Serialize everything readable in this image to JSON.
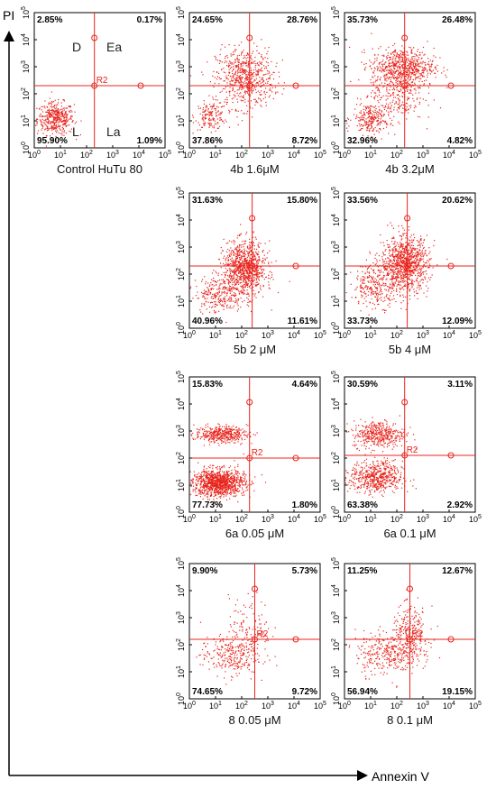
{
  "axes": {
    "x_label": "Annexin V",
    "y_label": "PI"
  },
  "chart_data": [
    {
      "type": "scatter",
      "title": "Control HuTu 80",
      "gate": "R2",
      "quadrant_labels": [
        "D",
        "Ea",
        "L",
        "La"
      ],
      "quadrants": {
        "ul": "2.85%",
        "ur": "0.17%",
        "ll": "95.90%",
        "lr": "1.09%"
      },
      "x_ticks": [
        "10^0",
        "10^1",
        "10^2",
        "10^3",
        "10^4",
        "10^5"
      ],
      "y_ticks": [
        "10^0",
        "10^1",
        "10^2",
        "10^3",
        "10^4",
        "10^5"
      ],
      "xlim": [
        0,
        5
      ],
      "ylim": [
        0,
        5
      ],
      "gate_x": 2.3,
      "gate_y": 2.3,
      "clusters": [
        {
          "cx": 0.8,
          "cy": 1.1,
          "sx": 0.35,
          "sy": 0.3,
          "n": 420
        }
      ]
    },
    {
      "type": "scatter",
      "title": "4b  1.6μM",
      "gate": "",
      "quadrants": {
        "ul": "24.65%",
        "ur": "28.76%",
        "ll": "37.86%",
        "lr": "8.72%"
      },
      "x_ticks": [
        "10^0",
        "10^1",
        "10^2",
        "10^3",
        "10^4",
        "10^5"
      ],
      "y_ticks": [
        "10^0",
        "10^1",
        "10^2",
        "10^3",
        "10^4",
        "10^5"
      ],
      "xlim": [
        0,
        5
      ],
      "ylim": [
        0,
        5
      ],
      "gate_x": 2.3,
      "gate_y": 2.3,
      "clusters": [
        {
          "cx": 0.8,
          "cy": 1.2,
          "sx": 0.3,
          "sy": 0.25,
          "n": 160
        },
        {
          "cx": 2.1,
          "cy": 2.6,
          "sx": 0.55,
          "sy": 0.55,
          "n": 650
        }
      ]
    },
    {
      "type": "scatter",
      "title": "4b  3.2μM",
      "gate": "",
      "quadrants": {
        "ul": "35.73%",
        "ur": "26.48%",
        "ll": "32.96%",
        "lr": "4.82%"
      },
      "x_ticks": [
        "10^0",
        "10^1",
        "10^2",
        "10^3",
        "10^4",
        "10^5"
      ],
      "y_ticks": [
        "10^0",
        "10^1",
        "10^2",
        "10^3",
        "10^4",
        "10^5"
      ],
      "xlim": [
        0,
        5
      ],
      "ylim": [
        0,
        5
      ],
      "gate_x": 2.3,
      "gate_y": 2.3,
      "clusters": [
        {
          "cx": 1.0,
          "cy": 1.1,
          "sx": 0.35,
          "sy": 0.3,
          "n": 250
        },
        {
          "cx": 2.2,
          "cy": 3.0,
          "sx": 0.6,
          "sy": 0.35,
          "n": 650
        },
        {
          "cx": 2.0,
          "cy": 2.0,
          "sx": 0.5,
          "sy": 0.5,
          "n": 250
        }
      ]
    },
    {
      "type": "scatter",
      "title": "5b   2 μM",
      "gate": "",
      "quadrants": {
        "ul": "31.63%",
        "ur": "15.80%",
        "ll": "40.96%",
        "lr": "11.61%"
      },
      "x_ticks": [
        "10^0",
        "10^1",
        "10^2",
        "10^3",
        "10^4",
        "10^5"
      ],
      "y_ticks": [
        "10^0",
        "10^1",
        "10^2",
        "10^3",
        "10^4",
        "10^5"
      ],
      "xlim": [
        0,
        5
      ],
      "ylim": [
        0,
        5
      ],
      "gate_x": 2.4,
      "gate_y": 2.3,
      "clusters": [
        {
          "cx": 1.1,
          "cy": 1.3,
          "sx": 0.45,
          "sy": 0.35,
          "n": 250
        },
        {
          "cx": 2.1,
          "cy": 2.2,
          "sx": 0.4,
          "sy": 0.5,
          "n": 950
        }
      ]
    },
    {
      "type": "scatter",
      "title": "5b   4 μM",
      "gate": "",
      "quadrants": {
        "ul": "33.56%",
        "ur": "20.62%",
        "ll": "33.73%",
        "lr": "12.09%"
      },
      "x_ticks": [
        "10^0",
        "10^1",
        "10^2",
        "10^3",
        "10^4",
        "10^5"
      ],
      "y_ticks": [
        "10^0",
        "10^1",
        "10^2",
        "10^3",
        "10^4",
        "10^5"
      ],
      "xlim": [
        0,
        5
      ],
      "ylim": [
        0,
        5
      ],
      "gate_x": 2.4,
      "gate_y": 2.3,
      "clusters": [
        {
          "cx": 1.2,
          "cy": 1.6,
          "sx": 0.45,
          "sy": 0.4,
          "n": 280
        },
        {
          "cx": 2.3,
          "cy": 2.4,
          "sx": 0.45,
          "sy": 0.5,
          "n": 950
        }
      ]
    },
    {
      "type": "scatter",
      "title": "6a   0.05 μM",
      "gate": "R2",
      "quadrants": {
        "ul": "15.83%",
        "ur": "4.64%",
        "ll": "77.73%",
        "lr": "1.80%"
      },
      "x_ticks": [
        "10^0",
        "10^1",
        "10^2",
        "10^3",
        "10^4",
        "10^5"
      ],
      "y_ticks": [
        "10^0",
        "10^1",
        "10^2",
        "10^3",
        "10^4",
        "10^5"
      ],
      "xlim": [
        0,
        5
      ],
      "ylim": [
        0,
        5
      ],
      "gate_x": 2.3,
      "gate_y": 2.0,
      "clusters": [
        {
          "cx": 1.1,
          "cy": 1.1,
          "sx": 0.5,
          "sy": 0.25,
          "n": 1100
        },
        {
          "cx": 1.2,
          "cy": 2.9,
          "sx": 0.5,
          "sy": 0.15,
          "n": 420
        }
      ]
    },
    {
      "type": "scatter",
      "title": "6a   0.1 μM",
      "gate": "R2",
      "quadrants": {
        "ul": "30.59%",
        "ur": "3.11%",
        "ll": "63.38%",
        "lr": "2.92%"
      },
      "x_ticks": [
        "10^0",
        "10^1",
        "10^2",
        "10^3",
        "10^4",
        "10^5"
      ],
      "y_ticks": [
        "10^0",
        "10^1",
        "10^2",
        "10^3",
        "10^4",
        "10^5"
      ],
      "xlim": [
        0,
        5
      ],
      "ylim": [
        0,
        5
      ],
      "gate_x": 2.3,
      "gate_y": 2.1,
      "clusters": [
        {
          "cx": 1.2,
          "cy": 1.3,
          "sx": 0.5,
          "sy": 0.3,
          "n": 550
        },
        {
          "cx": 1.3,
          "cy": 2.9,
          "sx": 0.5,
          "sy": 0.25,
          "n": 420
        }
      ]
    },
    {
      "type": "scatter",
      "title": "8    0.05 μM",
      "gate": "R2",
      "quadrants": {
        "ul": "9.90%",
        "ur": "5.73%",
        "ll": "74.65%",
        "lr": "9.72%"
      },
      "x_ticks": [
        "10^0",
        "10^1",
        "10^2",
        "10^3",
        "10^4",
        "10^5"
      ],
      "y_ticks": [
        "10^0",
        "10^1",
        "10^2",
        "10^3",
        "10^4",
        "10^5"
      ],
      "xlim": [
        0,
        5
      ],
      "ylim": [
        0,
        5
      ],
      "gate_x": 2.5,
      "gate_y": 2.2,
      "clusters": [
        {
          "cx": 1.5,
          "cy": 1.6,
          "sx": 0.55,
          "sy": 0.35,
          "n": 260
        },
        {
          "cx": 2.3,
          "cy": 2.6,
          "sx": 0.4,
          "sy": 0.6,
          "n": 140
        }
      ]
    },
    {
      "type": "scatter",
      "title": "8    0.1 μM",
      "gate": "R2",
      "quadrants": {
        "ul": "11.25%",
        "ur": "12.67%",
        "ll": "56.94%",
        "lr": "19.15%"
      },
      "x_ticks": [
        "10^0",
        "10^1",
        "10^2",
        "10^3",
        "10^4",
        "10^5"
      ],
      "y_ticks": [
        "10^0",
        "10^1",
        "10^2",
        "10^3",
        "10^4",
        "10^5"
      ],
      "xlim": [
        0,
        5
      ],
      "ylim": [
        0,
        5
      ],
      "gate_x": 2.5,
      "gate_y": 2.2,
      "clusters": [
        {
          "cx": 1.6,
          "cy": 1.7,
          "sx": 0.6,
          "sy": 0.4,
          "n": 320
        },
        {
          "cx": 2.5,
          "cy": 2.4,
          "sx": 0.35,
          "sy": 0.5,
          "n": 280
        }
      ]
    }
  ]
}
